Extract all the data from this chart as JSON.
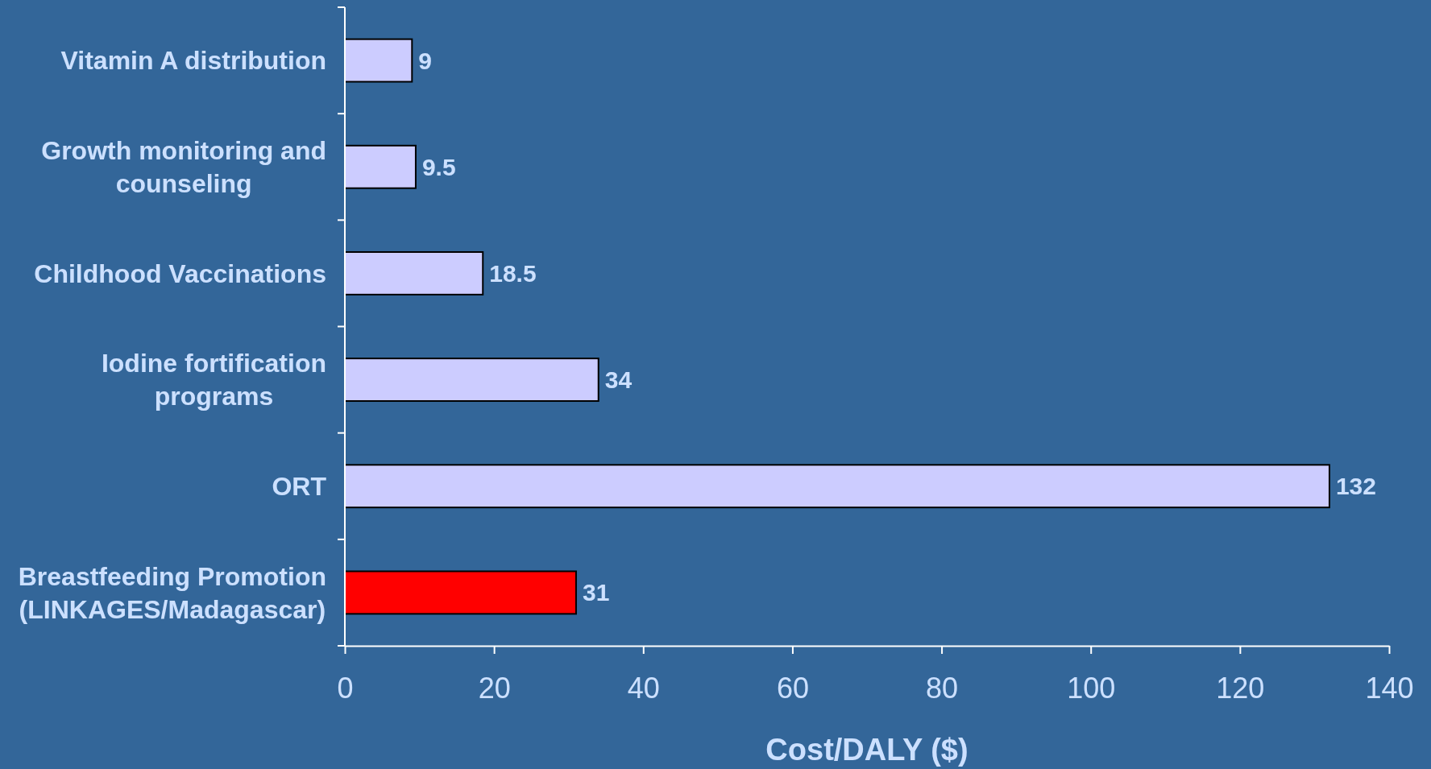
{
  "chart_data": {
    "type": "bar",
    "orientation": "horizontal",
    "xlabel": "Cost/DALY ($)",
    "categories": [
      "Vitamin A distribution",
      "Growth monitoring and counseling",
      "Childhood Vaccinations",
      "Iodine fortification programs",
      "ORT",
      "Breastfeeding Promotion (LINKAGES/Madagascar)"
    ],
    "values": [
      9,
      9.5,
      18.5,
      34,
      132,
      31
    ],
    "colors": [
      "#ccccff",
      "#ccccff",
      "#ccccff",
      "#ccccff",
      "#ccccff",
      "#ff0000"
    ],
    "xlim": [
      0,
      140
    ],
    "xticks": [
      0,
      20,
      40,
      60,
      80,
      100,
      120,
      140
    ],
    "data_labels": true,
    "grid": false
  }
}
